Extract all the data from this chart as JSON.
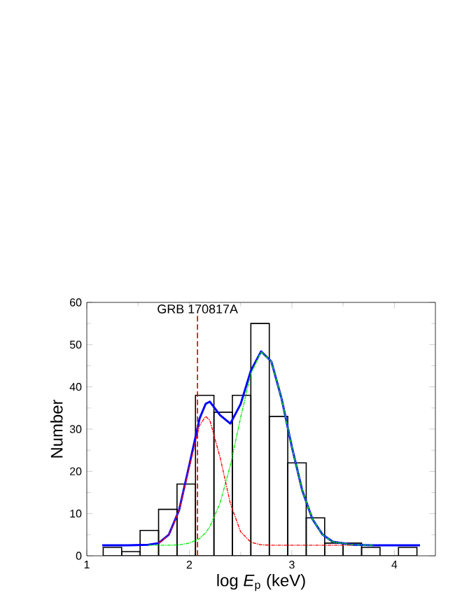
{
  "chart_data": {
    "type": "histogram",
    "xlabel": "log *E*$_{p}$ (keV)",
    "ylabel": "Number",
    "bins": [
      1.16,
      1.34,
      1.52,
      1.7,
      1.88,
      2.06,
      2.24,
      2.42,
      2.6,
      2.78,
      2.96,
      3.14,
      3.32,
      3.5,
      3.68,
      3.86,
      4.04,
      4.22
    ],
    "values": [
      2,
      1,
      6,
      11,
      17,
      38,
      34,
      38,
      55,
      33,
      22,
      9,
      3,
      3,
      2,
      0,
      2
    ],
    "color": "#000000",
    "series": [
      {
        "type": "line",
        "color": "#ff0000",
        "line_style": "dashdot",
        "x": [
          1.7,
          1.8,
          1.9,
          2.0,
          2.1,
          2.16,
          2.2,
          2.3,
          2.4,
          2.5,
          2.6,
          2.7,
          2.8,
          2.9,
          3.0,
          3.1,
          3.2,
          3.3,
          3.4,
          3.6
        ],
        "values": [
          3.0,
          4.9,
          10.7,
          21.0,
          30.9,
          33.0,
          32.1,
          23.3,
          12.4,
          5.7,
          3.2,
          2.6,
          2.5,
          2.5,
          2.5,
          2.5,
          2.5,
          2.5,
          2.5,
          2.5
        ]
      },
      {
        "type": "line",
        "color": "#00ee00",
        "line_style": "dashdot",
        "x": [
          1.6,
          1.7,
          1.8,
          1.9,
          2.0,
          2.1,
          2.16,
          2.2,
          2.3,
          2.4,
          2.5,
          2.6,
          2.7,
          2.8,
          2.9,
          3.0,
          3.1,
          3.2,
          3.3,
          3.4,
          3.6,
          3.8
        ],
        "values": [
          2.5,
          2.5,
          2.5,
          2.6,
          3.0,
          4.1,
          5.5,
          6.9,
          12.5,
          21.4,
          32.7,
          43.1,
          48.3,
          46.0,
          37.2,
          25.8,
          15.6,
          8.7,
          5.0,
          3.3,
          2.6,
          2.5
        ]
      },
      {
        "type": "line",
        "color": "#0000ff",
        "line_style": "solid",
        "x": [
          1.15,
          1.4,
          1.6,
          1.7,
          1.8,
          1.9,
          2.0,
          2.1,
          2.16,
          2.2,
          2.3,
          2.4,
          2.5,
          2.6,
          2.7,
          2.8,
          2.9,
          3.0,
          3.1,
          3.2,
          3.3,
          3.4,
          3.6,
          3.8,
          4.0,
          4.25
        ],
        "values": [
          2.5,
          2.5,
          2.6,
          3.0,
          5.0,
          10.8,
          21.5,
          32.5,
          36.0,
          36.5,
          33.3,
          31.3,
          35.9,
          43.8,
          48.4,
          46.0,
          37.2,
          25.8,
          15.6,
          8.7,
          5.0,
          3.3,
          2.6,
          2.5,
          2.5,
          2.5
        ]
      }
    ],
    "ref_lines": [
      {
        "axis": "x",
        "value": 2.08,
        "label": "GRB 170817A",
        "color": "#cc0000",
        "line_style": "dashed"
      }
    ],
    "xlim": [
      1,
      4.4
    ],
    "ylim": [
      0,
      60
    ],
    "xticks": [
      1,
      2,
      3,
      4
    ],
    "yticks": [
      0,
      10,
      20,
      30,
      40,
      50,
      60
    ]
  }
}
